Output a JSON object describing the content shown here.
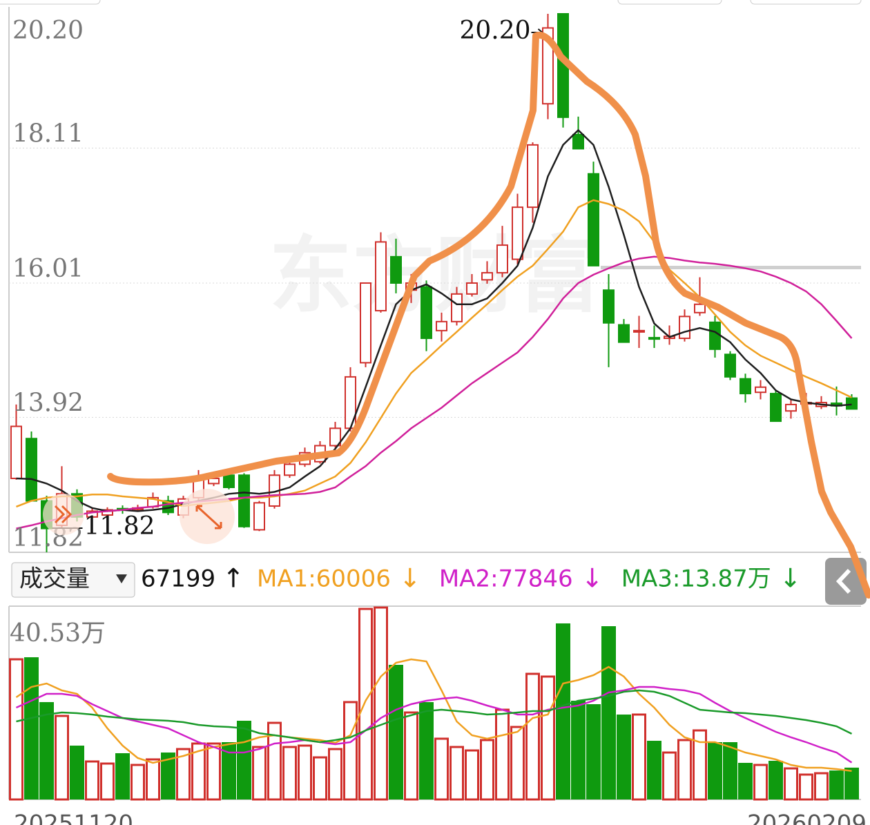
{
  "chart_data": [
    {
      "type": "candlestick",
      "watermark": "东方财富",
      "categories": [
        "20251120",
        null,
        null,
        null,
        null,
        null,
        null,
        null,
        null,
        null,
        null,
        null,
        null,
        null,
        null,
        null,
        null,
        null,
        null,
        null,
        null,
        null,
        null,
        null,
        null,
        null,
        null,
        null,
        null,
        null,
        null,
        null,
        null,
        null,
        null,
        null,
        null,
        null,
        null,
        null,
        null,
        null,
        null,
        null,
        null,
        null,
        null,
        null,
        null,
        null,
        null,
        null,
        null,
        null,
        null,
        "20260209"
      ],
      "open": [
        12.97,
        13.59,
        12.62,
        12.24,
        12.73,
        12.37,
        12.4,
        12.5,
        12.5,
        12.53,
        12.62,
        12.4,
        12.67,
        12.89,
        13.02,
        13.02,
        12.17,
        12.54,
        13.02,
        13.19,
        13.23,
        13.48,
        13.75,
        14.77,
        15.58,
        16.42,
        15.9,
        15.95,
        15.27,
        15.41,
        15.84,
        16.06,
        16.17,
        16.38,
        17.19,
        18.8,
        20.2,
        18.32,
        17.71,
        15.9,
        15.36,
        15.25,
        15.16,
        15.15,
        15.15,
        15.55,
        15.4,
        14.9,
        14.52,
        14.31,
        14.29,
        14.02,
        14.15,
        14.09,
        14.14,
        14.22
      ],
      "high": [
        14.12,
        13.7,
        12.7,
        13.16,
        12.8,
        12.5,
        12.52,
        12.55,
        12.56,
        12.75,
        12.7,
        12.7,
        13.1,
        13.05,
        13.1,
        13.05,
        12.62,
        13.1,
        13.25,
        13.45,
        13.55,
        13.85,
        14.7,
        16.01,
        16.8,
        16.7,
        16.15,
        16.05,
        15.55,
        15.95,
        16.15,
        16.35,
        16.9,
        17.4,
        18.2,
        20.2,
        20.2,
        18.6,
        17.9,
        16.15,
        15.45,
        15.5,
        15.35,
        15.35,
        15.6,
        16.1,
        15.5,
        14.95,
        14.6,
        14.5,
        14.35,
        14.2,
        14.3,
        14.25,
        14.4,
        14.28
      ],
      "low": [
        12.95,
        12.62,
        11.82,
        12.2,
        12.3,
        12.33,
        12.38,
        12.42,
        12.45,
        12.5,
        12.4,
        12.35,
        12.6,
        12.85,
        12.8,
        12.2,
        12.15,
        12.5,
        12.98,
        13.15,
        13.2,
        13.45,
        13.7,
        14.7,
        15.55,
        15.85,
        15.7,
        14.95,
        15.1,
        15.35,
        15.8,
        16.0,
        16.1,
        16.3,
        16.95,
        18.56,
        18.43,
        18.1,
        16.28,
        14.7,
        15.09,
        15.0,
        15.0,
        15.05,
        15.1,
        15.5,
        14.85,
        14.5,
        14.15,
        14.2,
        13.86,
        13.9,
        14.05,
        14.05,
        13.95,
        14.05
      ],
      "close": [
        13.78,
        12.62,
        12.19,
        12.73,
        12.37,
        12.46,
        12.48,
        12.48,
        12.51,
        12.67,
        12.44,
        12.65,
        12.99,
        12.97,
        12.83,
        12.22,
        12.59,
        13.02,
        13.19,
        13.37,
        13.48,
        13.75,
        14.55,
        16.01,
        16.65,
        16.01,
        16.01,
        15.15,
        15.41,
        15.84,
        16.01,
        16.17,
        16.6,
        17.19,
        18.16,
        19.98,
        18.59,
        18.1,
        16.28,
        15.39,
        15.09,
        15.27,
        15.14,
        15.18,
        15.49,
        15.68,
        14.98,
        14.55,
        14.29,
        14.39,
        13.86,
        14.12,
        14.15,
        14.15,
        14.1,
        14.05
      ],
      "up_color": "#d0302c",
      "down_color": "#0f9a0f",
      "lines": [
        {
          "color": "#1e1e1e",
          "values": [
            12.97,
            12.96,
            12.89,
            12.78,
            12.62,
            12.51,
            12.46,
            12.48,
            12.46,
            12.48,
            12.51,
            12.57,
            12.62,
            12.67,
            12.73,
            12.75,
            12.73,
            12.76,
            12.83,
            13.0,
            13.16,
            13.43,
            13.75,
            14.39,
            15.04,
            15.68,
            15.9,
            15.99,
            15.85,
            15.68,
            15.68,
            15.77,
            16.01,
            16.28,
            16.87,
            17.67,
            18.16,
            18.39,
            18.16,
            17.51,
            16.76,
            15.95,
            15.38,
            15.17,
            15.25,
            15.31,
            15.25,
            15.09,
            14.82,
            14.61,
            14.34,
            14.2,
            14.15,
            14.12,
            14.1,
            14.12
          ]
        },
        {
          "color": "#f0a020",
          "values": [
            12.53,
            12.62,
            12.67,
            12.69,
            12.69,
            12.72,
            12.72,
            12.69,
            12.67,
            12.65,
            12.6,
            12.54,
            12.57,
            12.59,
            12.62,
            12.67,
            12.67,
            12.69,
            12.73,
            12.78,
            12.89,
            13.0,
            13.21,
            13.53,
            13.91,
            14.29,
            14.61,
            14.82,
            15.04,
            15.25,
            15.47,
            15.68,
            15.9,
            16.11,
            16.28,
            16.54,
            16.81,
            17.19,
            17.3,
            17.24,
            17.14,
            16.97,
            16.65,
            16.22,
            16.01,
            15.79,
            15.52,
            15.25,
            15.04,
            14.88,
            14.77,
            14.66,
            14.55,
            14.45,
            14.34,
            14.23
          ]
        },
        {
          "color": "#d0209a",
          "values": [
            12.19,
            12.24,
            12.3,
            12.35,
            12.4,
            12.44,
            12.46,
            12.48,
            12.51,
            12.53,
            12.57,
            12.59,
            12.61,
            12.63,
            12.65,
            12.67,
            12.69,
            12.71,
            12.72,
            12.73,
            12.76,
            12.83,
            13.0,
            13.16,
            13.37,
            13.55,
            13.75,
            13.91,
            14.07,
            14.26,
            14.45,
            14.61,
            14.77,
            14.93,
            15.17,
            15.45,
            15.77,
            16.01,
            16.14,
            16.24,
            16.33,
            16.39,
            16.42,
            16.4,
            16.36,
            16.33,
            16.31,
            16.28,
            16.24,
            16.19,
            16.11,
            16.01,
            15.88,
            15.68,
            15.42,
            15.15
          ]
        }
      ],
      "annotations": [
        {
          "label": "20.20",
          "value": 20.2,
          "index": 35
        },
        {
          "label": "11.82",
          "value": 11.82,
          "index": 2
        }
      ],
      "ylim": [
        11.82,
        20.2
      ],
      "yticks": [
        {
          "value": 20.2,
          "label": "20.20"
        },
        18.11,
        16.01,
        13.92,
        11.82
      ],
      "grid": true
    },
    {
      "type": "bar",
      "values": [
        296000,
        300300,
        205600,
        176400,
        113700,
        80200,
        75800,
        97700,
        72900,
        84600,
        99100,
        106400,
        118100,
        118100,
        121000,
        166200,
        110800,
        161800,
        110800,
        113700,
        88900,
        106400,
        205600,
        402400,
        405300,
        284300,
        183700,
        205600,
        128300,
        110800,
        103500,
        125400,
        189500,
        153100,
        265300,
        259500,
        371800,
        208500,
        201200,
        365900,
        179300,
        179300,
        123900,
        99100,
        125400,
        145800,
        121000,
        121000,
        77300,
        72900,
        81600,
        65600,
        52500,
        55400,
        61200,
        67199
      ],
      "lines": [
        {
          "color": "#f0a020",
          "values": [
            215800,
            237600,
            244900,
            230300,
            223100,
            193900,
            150200,
            113700,
            87500,
            77300,
            84600,
            91800,
            102100,
            110800,
            116600,
            121000,
            131200,
            135600,
            131200,
            128300,
            125400,
            119500,
            135600,
            208500,
            259500,
            288700,
            296000,
            291600,
            230300,
            164700,
            135600,
            128300,
            135600,
            142900,
            172000,
            179300,
            244900,
            252200,
            262400,
            279900,
            259500,
            223100,
            193900,
            157500,
            131200,
            121000,
            121000,
            110800,
            99100,
            91800,
            84600,
            72900,
            67100,
            67100,
            64100,
            60006
          ]
        },
        {
          "color": "#d020c8",
          "values": [
            193900,
            208500,
            223100,
            223100,
            218700,
            201200,
            186600,
            172000,
            164700,
            157500,
            150200,
            135600,
            121000,
            110800,
            99100,
            99100,
            106400,
            118100,
            121000,
            125400,
            121000,
            116600,
            121000,
            145800,
            172000,
            189500,
            201200,
            208500,
            212900,
            215800,
            208500,
            198300,
            189500,
            179300,
            179300,
            189500,
            193900,
            198300,
            208500,
            226000,
            230300,
            237600,
            237600,
            233300,
            230300,
            223100,
            204100,
            186600,
            172000,
            157500,
            142900,
            131200,
            121000,
            109300,
            99100,
            77846
          ]
        },
        {
          "color": "#1a9a2a",
          "values": [
            164700,
            172000,
            179300,
            183700,
            182200,
            179300,
            174900,
            172000,
            169100,
            167700,
            166200,
            163300,
            157500,
            154500,
            153100,
            150200,
            140000,
            135600,
            131200,
            125400,
            121000,
            125400,
            131200,
            145800,
            157500,
            169100,
            177900,
            186600,
            189500,
            186600,
            183700,
            179300,
            180800,
            183700,
            186600,
            186600,
            198300,
            208500,
            212900,
            218700,
            227400,
            230300,
            227400,
            218700,
            204100,
            189500,
            186600,
            183700,
            182200,
            179300,
            176400,
            172000,
            167700,
            161800,
            154500,
            138700
          ]
        }
      ],
      "ylim": [
        0,
        405300
      ],
      "yticks": [
        {
          "value": 405300,
          "label": "40.53万"
        }
      ]
    }
  ],
  "header": {
    "selector": "成交量",
    "volume": "67199",
    "volume_trend": "↑",
    "ma": [
      {
        "label": "MA1:60006",
        "trend": "↓",
        "color": "#f0a020"
      },
      {
        "label": "MA2:77846",
        "trend": "↓",
        "color": "#d020c8"
      },
      {
        "label": "MA3:13.87万",
        "trend": "↓",
        "color": "#1a9a2a"
      }
    ]
  }
}
